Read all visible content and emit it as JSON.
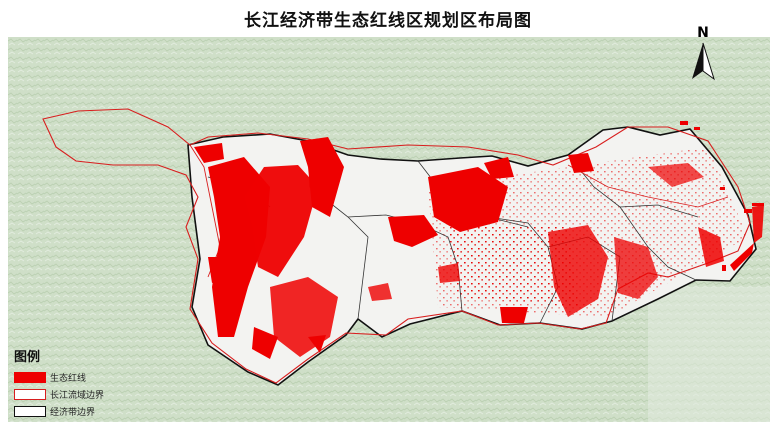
{
  "map": {
    "title": "长江经济带生态红线区规划区布局图",
    "north_label": "N"
  },
  "legend": {
    "title": "图例",
    "items": [
      {
        "label": "生态红线",
        "color": "#ee0000",
        "kind": "fill"
      },
      {
        "label": "长江流域边界",
        "color": "#d81e1e",
        "kind": "outline"
      },
      {
        "label": "经济带边界",
        "color": "#111111",
        "kind": "outline"
      }
    ]
  },
  "colors": {
    "background_terrain": "#c9dbc2",
    "red_zone": "#ee0000",
    "basin_boundary": "#d81e1e",
    "economic_belt_boundary": "#111111",
    "belt_fill": "#f4f4f2"
  }
}
